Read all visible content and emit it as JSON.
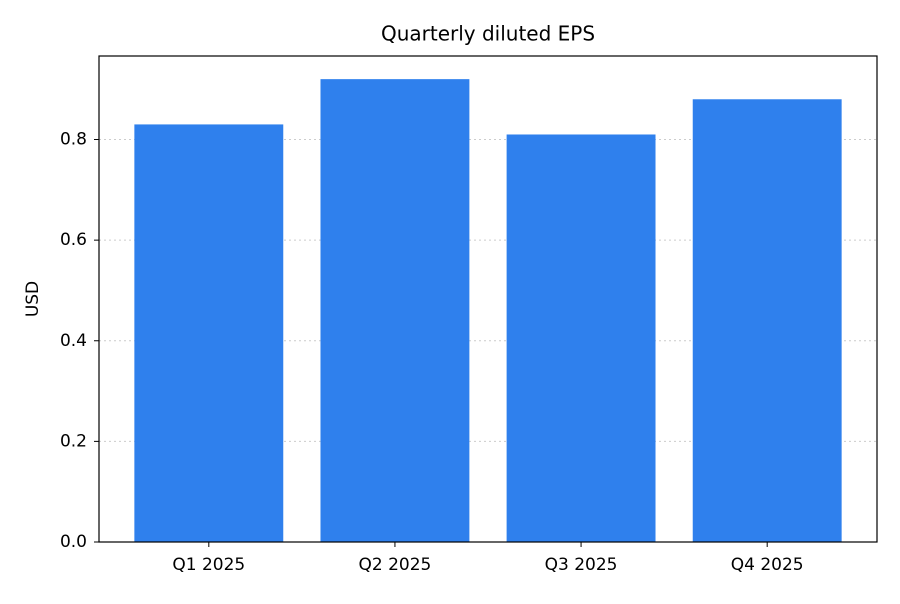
{
  "chart_data": {
    "type": "bar",
    "title": "Quarterly diluted EPS",
    "y_label": "USD",
    "categories": [
      "Q1 2025",
      "Q2 2025",
      "Q3 2025",
      "Q4 2025"
    ],
    "values": [
      0.83,
      0.92,
      0.81,
      0.88
    ],
    "color": "#2f80ed",
    "ylim": [
      0,
      0.966
    ],
    "yticks": [
      {
        "value": 0,
        "label": "0.0"
      },
      0.2,
      0.4,
      0.6,
      0.8
    ],
    "grid": true
  }
}
